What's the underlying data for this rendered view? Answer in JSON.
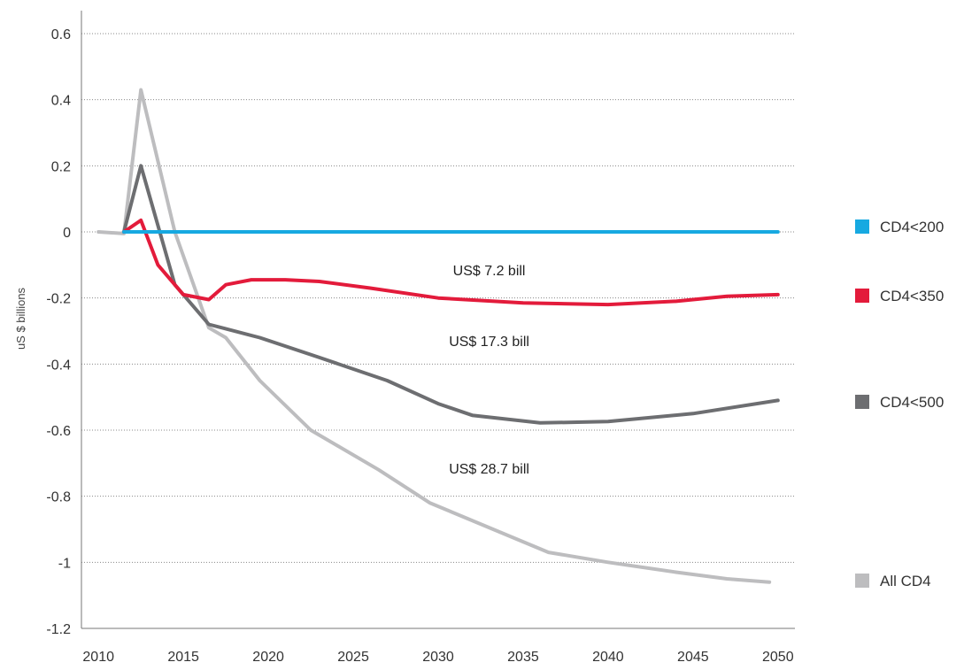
{
  "chart_data": {
    "type": "line",
    "title": "",
    "xlabel": "",
    "ylabel": "uS $ billions",
    "xlim": [
      2009,
      2051
    ],
    "ylim": [
      -1.2,
      0.6
    ],
    "x_ticks": [
      "2010",
      "2015",
      "2020",
      "2025",
      "2030",
      "2035",
      "2040",
      "2045",
      "2050"
    ],
    "y_ticks": [
      "0.6",
      "0.4",
      "0.2",
      "0",
      "-0.2",
      "-0.4",
      "-0.6",
      "-0.8",
      "-1",
      "-1.2"
    ],
    "y_tick_values": [
      0.6,
      0.4,
      0.2,
      0,
      -0.2,
      -0.4,
      -0.6,
      -0.8,
      -1,
      -1.2
    ],
    "grid": "horizontal dotted",
    "legend_position": "right",
    "series": [
      {
        "name": "All CD4",
        "color": "#bdbdbf",
        "points": [
          [
            2010,
            0.0
          ],
          [
            2011.5,
            -0.005
          ],
          [
            2012.5,
            0.43
          ],
          [
            2014.5,
            0.0
          ],
          [
            2016.5,
            -0.29
          ],
          [
            2017.5,
            -0.32
          ],
          [
            2019.5,
            -0.45
          ],
          [
            2022.5,
            -0.6
          ],
          [
            2026.5,
            -0.72
          ],
          [
            2029.5,
            -0.82
          ],
          [
            2036.5,
            -0.97
          ],
          [
            2040,
            -1.0
          ],
          [
            2044,
            -1.03
          ],
          [
            2047,
            -1.05
          ],
          [
            2049.5,
            -1.06
          ]
        ]
      },
      {
        "name": "CD4<500",
        "color": "#6d6e71",
        "points": [
          [
            2011.5,
            0.0
          ],
          [
            2012.5,
            0.2
          ],
          [
            2014.5,
            -0.16
          ],
          [
            2016.5,
            -0.28
          ],
          [
            2019.5,
            -0.32
          ],
          [
            2023,
            -0.38
          ],
          [
            2027,
            -0.45
          ],
          [
            2030,
            -0.52
          ],
          [
            2032,
            -0.555
          ],
          [
            2036,
            -0.578
          ],
          [
            2040,
            -0.574
          ],
          [
            2045,
            -0.55
          ],
          [
            2050,
            -0.51
          ]
        ]
      },
      {
        "name": "CD4<350",
        "color": "#e31b3b",
        "points": [
          [
            2011.5,
            0.0
          ],
          [
            2012.5,
            0.035
          ],
          [
            2013.5,
            -0.1
          ],
          [
            2015,
            -0.19
          ],
          [
            2016.5,
            -0.205
          ],
          [
            2017.5,
            -0.16
          ],
          [
            2019,
            -0.145
          ],
          [
            2021,
            -0.145
          ],
          [
            2023,
            -0.15
          ],
          [
            2026,
            -0.17
          ],
          [
            2030,
            -0.2
          ],
          [
            2035,
            -0.215
          ],
          [
            2040,
            -0.22
          ],
          [
            2044,
            -0.21
          ],
          [
            2047,
            -0.195
          ],
          [
            2050,
            -0.19
          ]
        ]
      },
      {
        "name": "CD4<200",
        "color": "#17a9e1",
        "points": [
          [
            2011.5,
            0.0
          ],
          [
            2050,
            0.0
          ]
        ]
      }
    ],
    "annotations": [
      {
        "text": "US$ 7.2 bill",
        "x": 2033,
        "y": -0.115
      },
      {
        "text": "US$ 17.3 bill",
        "x": 2033,
        "y": -0.33
      },
      {
        "text": "US$ 28.7 bill",
        "x": 2033,
        "y": -0.715
      }
    ],
    "legend": [
      {
        "label": "CD4<200",
        "color": "#17a9e1"
      },
      {
        "label": "CD4<350",
        "color": "#e31b3b"
      },
      {
        "label": "CD4<500",
        "color": "#6d6e71"
      },
      {
        "label": "All CD4",
        "color": "#bdbdbf"
      }
    ]
  }
}
